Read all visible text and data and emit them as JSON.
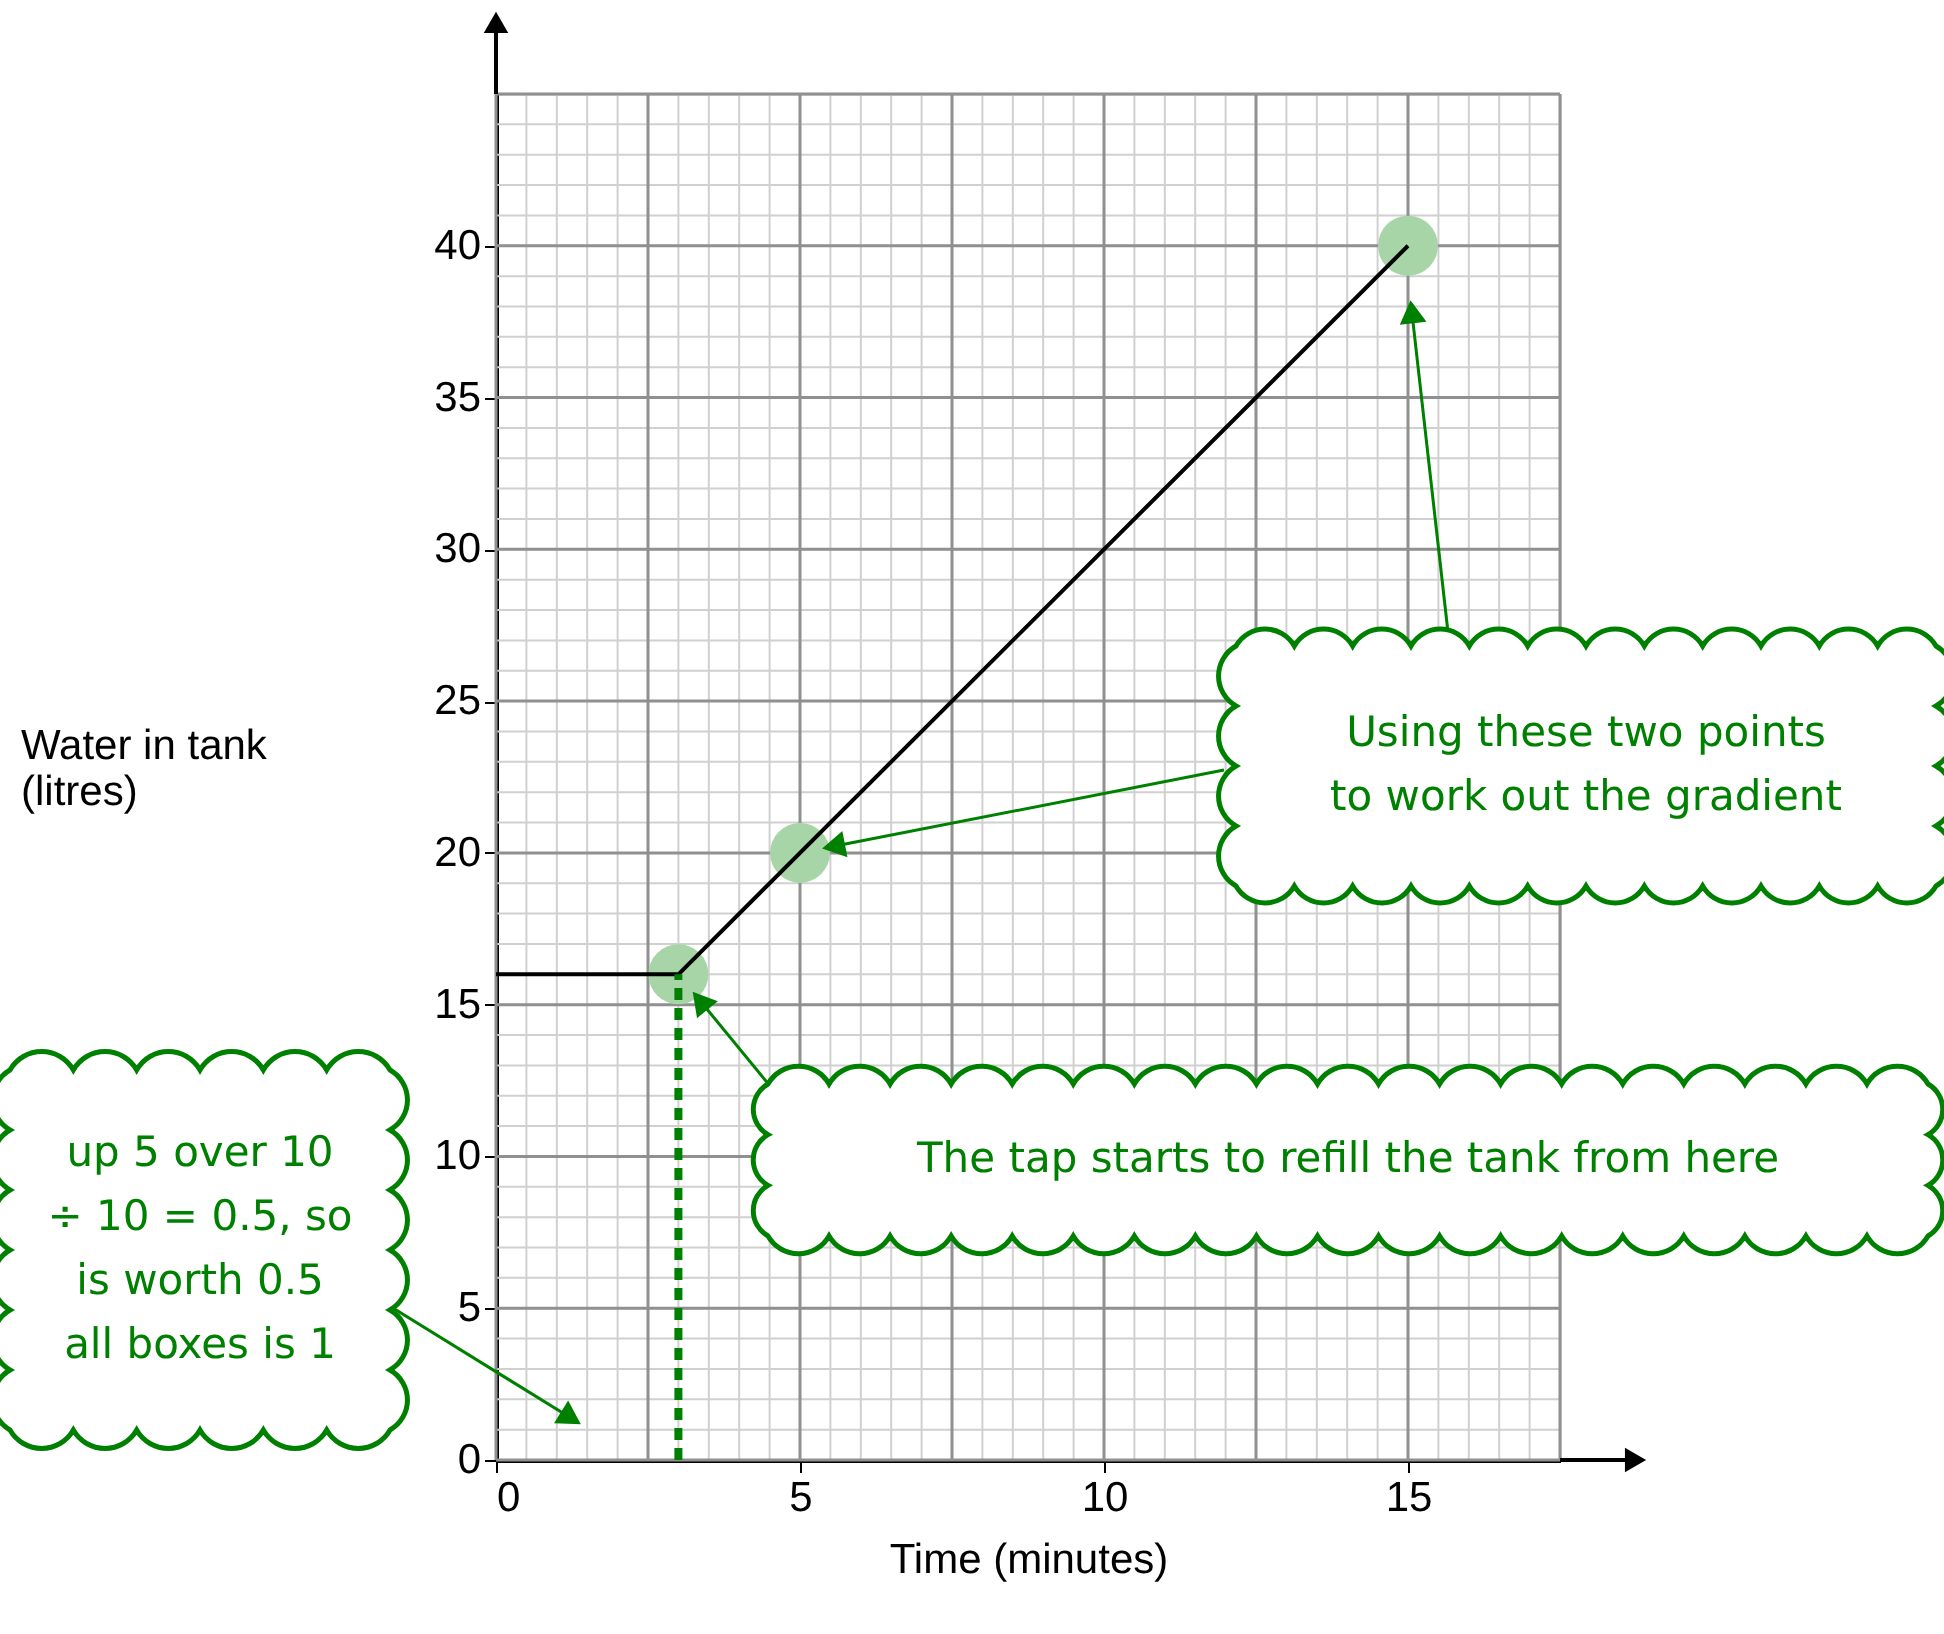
{
  "chart_data": {
    "type": "line",
    "xlabel": "Time (minutes)",
    "ylabel": "Water in tank\n(litres)",
    "xlim": [
      0,
      17.5
    ],
    "ylim": [
      0,
      45
    ],
    "xticks": [
      0,
      5,
      10,
      15
    ],
    "yticks": [
      0,
      5,
      10,
      15,
      20,
      25,
      30,
      35,
      40
    ],
    "grid": true,
    "series": [
      {
        "type": "scatter",
        "color": "#a8d5a8",
        "marker": "circle",
        "x": [
          3,
          5,
          15
        ],
        "values": [
          16,
          20,
          40
        ]
      },
      {
        "color": "#000000",
        "line_style": "solid",
        "x": [
          0,
          3,
          15
        ],
        "values": [
          16,
          16,
          40
        ]
      },
      {
        "color": "#008000",
        "line_style": "dashed",
        "x": [
          3,
          3
        ],
        "values": [
          0,
          16
        ]
      }
    ],
    "annotations": [
      "Using these two points\nto work out the gradient",
      "The tap starts to refill the tank from here",
      "up 5 over 10\n÷ 10 = 0.5, so\nis worth 0.5\nall boxes is 1"
    ]
  }
}
